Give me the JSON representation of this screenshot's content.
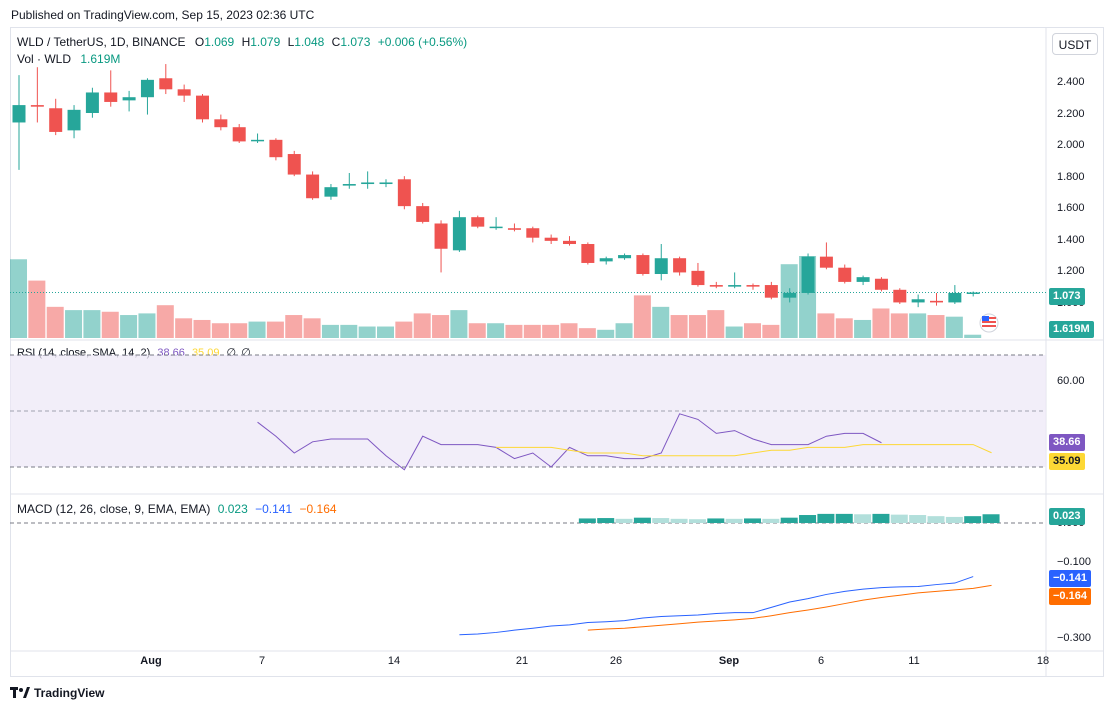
{
  "header": {
    "published": "Published on TradingView.com, Sep 15, 2023 02:36 UTC"
  },
  "currency_button": "USDT",
  "legend": {
    "symbol": "WLD / TetherUS, 1D, BINANCE",
    "open_label": "O",
    "open": "1.069",
    "high_label": "H",
    "high": "1.079",
    "low_label": "L",
    "low": "1.048",
    "close_label": "C",
    "close": "1.073",
    "change": "+0.006 (+0.56%)",
    "vol_label": "Vol · WLD",
    "vol": "1.619M"
  },
  "price_axis": {
    "ticks": [
      "2.400",
      "2.200",
      "2.000",
      "1.800",
      "1.600",
      "1.400",
      "1.200",
      "1.000"
    ],
    "last": "1.073",
    "vol_badge": "1.619M"
  },
  "rsi": {
    "label": "RSI (14, close, SMA, 14, 2)",
    "value": "38.66",
    "sma": "35.09",
    "zero1": "∅",
    "zero2": "∅",
    "ticks": [
      "60.00"
    ],
    "badge_value": "38.66",
    "badge_sma": "35.09"
  },
  "macd": {
    "label": "MACD (12, 26, close, 9, EMA, EMA)",
    "hist": "0.023",
    "macd": "−0.141",
    "signal": "−0.164",
    "ticks": [
      "0.000",
      "−0.100",
      "−0.300"
    ],
    "badge_hist": "0.023",
    "badge_macd": "−0.141",
    "badge_signal": "−0.164"
  },
  "time_axis": [
    "Aug",
    "7",
    "14",
    "21",
    "26",
    "Sep",
    "6",
    "11",
    "18"
  ],
  "footer": {
    "brand": "TradingView"
  },
  "colors": {
    "up": "#26a69a",
    "down": "#ef5350",
    "rsi": "#7e57c2",
    "rsi_sma": "#fdd835",
    "macd": "#2962ff",
    "signal": "#ff6d00"
  },
  "chart_data": [
    {
      "type": "candlestick",
      "title": "WLD / TetherUS, 1D, BINANCE",
      "ylim": [
        0.93,
        2.55
      ],
      "candles": [
        {
          "o": 2.15,
          "h": 2.45,
          "l": 1.85,
          "c": 2.26
        },
        {
          "o": 2.26,
          "h": 2.5,
          "l": 2.15,
          "c": 2.25
        },
        {
          "o": 2.24,
          "h": 2.3,
          "l": 2.07,
          "c": 2.09
        },
        {
          "o": 2.1,
          "h": 2.26,
          "l": 2.05,
          "c": 2.23
        },
        {
          "o": 2.21,
          "h": 2.37,
          "l": 2.18,
          "c": 2.34
        },
        {
          "o": 2.34,
          "h": 2.48,
          "l": 2.25,
          "c": 2.28
        },
        {
          "o": 2.29,
          "h": 2.35,
          "l": 2.22,
          "c": 2.31
        },
        {
          "o": 2.31,
          "h": 2.43,
          "l": 2.2,
          "c": 2.42
        },
        {
          "o": 2.43,
          "h": 2.52,
          "l": 2.33,
          "c": 2.36
        },
        {
          "o": 2.36,
          "h": 2.39,
          "l": 2.28,
          "c": 2.32
        },
        {
          "o": 2.32,
          "h": 2.33,
          "l": 2.15,
          "c": 2.17
        },
        {
          "o": 2.17,
          "h": 2.2,
          "l": 2.1,
          "c": 2.12
        },
        {
          "o": 2.12,
          "h": 2.14,
          "l": 2.02,
          "c": 2.03
        },
        {
          "o": 2.04,
          "h": 2.08,
          "l": 2.02,
          "c": 2.04
        },
        {
          "o": 2.04,
          "h": 2.05,
          "l": 1.91,
          "c": 1.93
        },
        {
          "o": 1.95,
          "h": 1.97,
          "l": 1.81,
          "c": 1.82
        },
        {
          "o": 1.82,
          "h": 1.84,
          "l": 1.66,
          "c": 1.67
        },
        {
          "o": 1.68,
          "h": 1.76,
          "l": 1.66,
          "c": 1.74
        },
        {
          "o": 1.75,
          "h": 1.83,
          "l": 1.73,
          "c": 1.76
        },
        {
          "o": 1.76,
          "h": 1.84,
          "l": 1.73,
          "c": 1.77
        },
        {
          "o": 1.76,
          "h": 1.79,
          "l": 1.74,
          "c": 1.77
        },
        {
          "o": 1.79,
          "h": 1.81,
          "l": 1.6,
          "c": 1.62
        },
        {
          "o": 1.62,
          "h": 1.64,
          "l": 1.51,
          "c": 1.52
        },
        {
          "o": 1.51,
          "h": 1.53,
          "l": 1.2,
          "c": 1.35
        },
        {
          "o": 1.34,
          "h": 1.59,
          "l": 1.33,
          "c": 1.55
        },
        {
          "o": 1.55,
          "h": 1.56,
          "l": 1.48,
          "c": 1.49
        },
        {
          "o": 1.49,
          "h": 1.55,
          "l": 1.47,
          "c": 1.49
        },
        {
          "o": 1.48,
          "h": 1.51,
          "l": 1.46,
          "c": 1.47
        },
        {
          "o": 1.48,
          "h": 1.49,
          "l": 1.39,
          "c": 1.42
        },
        {
          "o": 1.42,
          "h": 1.44,
          "l": 1.38,
          "c": 1.4
        },
        {
          "o": 1.4,
          "h": 1.43,
          "l": 1.37,
          "c": 1.38
        },
        {
          "o": 1.38,
          "h": 1.39,
          "l": 1.25,
          "c": 1.26
        },
        {
          "o": 1.27,
          "h": 1.3,
          "l": 1.25,
          "c": 1.29
        },
        {
          "o": 1.29,
          "h": 1.32,
          "l": 1.28,
          "c": 1.31
        },
        {
          "o": 1.31,
          "h": 1.32,
          "l": 1.18,
          "c": 1.19
        },
        {
          "o": 1.19,
          "h": 1.38,
          "l": 1.15,
          "c": 1.29
        },
        {
          "o": 1.29,
          "h": 1.3,
          "l": 1.18,
          "c": 1.2
        },
        {
          "o": 1.21,
          "h": 1.26,
          "l": 1.11,
          "c": 1.12
        },
        {
          "o": 1.12,
          "h": 1.14,
          "l": 1.1,
          "c": 1.11
        },
        {
          "o": 1.11,
          "h": 1.2,
          "l": 1.1,
          "c": 1.12
        },
        {
          "o": 1.12,
          "h": 1.13,
          "l": 1.09,
          "c": 1.11
        },
        {
          "o": 1.12,
          "h": 1.14,
          "l": 1.03,
          "c": 1.04
        },
        {
          "o": 1.04,
          "h": 1.1,
          "l": 1.01,
          "c": 1.07
        },
        {
          "o": 1.07,
          "h": 1.32,
          "l": 1.06,
          "c": 1.3
        },
        {
          "o": 1.3,
          "h": 1.39,
          "l": 1.22,
          "c": 1.23
        },
        {
          "o": 1.23,
          "h": 1.25,
          "l": 1.13,
          "c": 1.14
        },
        {
          "o": 1.14,
          "h": 1.18,
          "l": 1.12,
          "c": 1.17
        },
        {
          "o": 1.16,
          "h": 1.17,
          "l": 1.08,
          "c": 1.09
        },
        {
          "o": 1.09,
          "h": 1.1,
          "l": 1.0,
          "c": 1.01
        },
        {
          "o": 1.01,
          "h": 1.06,
          "l": 0.98,
          "c": 1.03
        },
        {
          "o": 1.02,
          "h": 1.07,
          "l": 0.99,
          "c": 1.01
        },
        {
          "o": 1.01,
          "h": 1.12,
          "l": 1.0,
          "c": 1.07
        },
        {
          "o": 1.069,
          "h": 1.079,
          "l": 1.048,
          "c": 1.073
        }
      ],
      "volume": [
        96,
        70,
        38,
        34,
        34,
        32,
        28,
        30,
        40,
        24,
        22,
        18,
        18,
        20,
        20,
        28,
        24,
        16,
        16,
        14,
        14,
        20,
        30,
        28,
        34,
        18,
        18,
        16,
        16,
        16,
        18,
        12,
        10,
        18,
        52,
        38,
        28,
        28,
        34,
        14,
        18,
        16,
        90,
        100,
        30,
        24,
        22,
        36,
        30,
        30,
        28,
        26,
        4
      ]
    },
    {
      "type": "line",
      "title": "RSI (14, close, SMA, 14, 2)",
      "ylim": [
        20,
        75
      ],
      "series": [
        {
          "name": "RSI",
          "start_index": 13,
          "values": [
            46,
            41,
            35,
            39,
            40,
            40,
            40,
            34,
            29,
            41,
            38,
            38,
            38,
            37,
            33,
            35,
            30,
            37,
            34,
            34,
            33,
            33,
            35,
            49,
            47,
            42,
            43,
            40,
            38,
            38,
            38,
            41,
            42,
            42,
            38.66
          ]
        },
        {
          "name": "SMA",
          "start_index": 26,
          "values": [
            37,
            37,
            37,
            37,
            36,
            35,
            35,
            35,
            34,
            34,
            34,
            34,
            34,
            34,
            35,
            36,
            36,
            37,
            37,
            37,
            38,
            38,
            38,
            38,
            38,
            38,
            38,
            35.09
          ]
        }
      ]
    },
    {
      "type": "bar+line",
      "title": "MACD (12, 26, close, 9, EMA, EMA)",
      "ylim": [
        -0.33,
        0.05
      ],
      "series": [
        {
          "name": "MACD",
          "start_index": 24,
          "values": [
            -0.294,
            -0.292,
            -0.288,
            -0.282,
            -0.277,
            -0.271,
            -0.268,
            -0.262,
            -0.26,
            -0.257,
            -0.25,
            -0.246,
            -0.244,
            -0.242,
            -0.238,
            -0.236,
            -0.236,
            -0.222,
            -0.208,
            -0.199,
            -0.188,
            -0.18,
            -0.174,
            -0.17,
            -0.168,
            -0.167,
            -0.162,
            -0.158,
            -0.141
          ]
        },
        {
          "name": "Signal",
          "start_index": 31,
          "values": [
            -0.282,
            -0.279,
            -0.277,
            -0.273,
            -0.269,
            -0.265,
            -0.261,
            -0.258,
            -0.255,
            -0.251,
            -0.244,
            -0.236,
            -0.229,
            -0.221,
            -0.212,
            -0.203,
            -0.196,
            -0.19,
            -0.184,
            -0.18,
            -0.176,
            -0.172,
            -0.164
          ]
        },
        {
          "name": "Histogram",
          "start_index": 31,
          "values": [
            0.012,
            0.013,
            0.011,
            0.014,
            0.013,
            0.011,
            0.01,
            0.012,
            0.011,
            0.012,
            0.011,
            0.014,
            0.021,
            0.024,
            0.024,
            0.023,
            0.024,
            0.022,
            0.021,
            0.018,
            0.016,
            0.018,
            0.023
          ]
        }
      ]
    }
  ]
}
